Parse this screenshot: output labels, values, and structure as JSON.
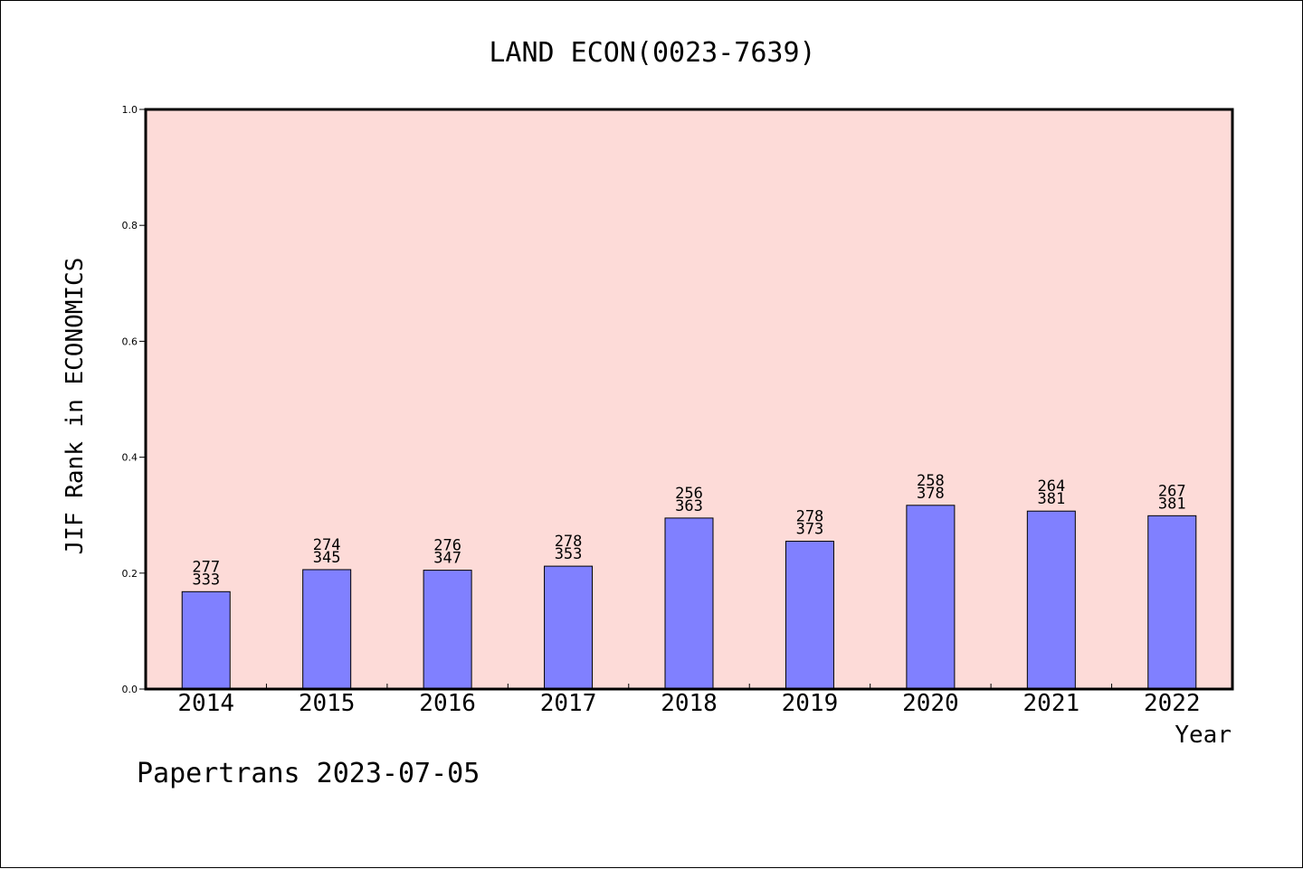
{
  "chart_data": {
    "type": "bar",
    "title": "LAND ECON(0023-7639)",
    "xlabel": "Year",
    "ylabel": "JIF Rank in ECONOMICS",
    "ylim": [
      0,
      1.0
    ],
    "yticks": [
      "0.0",
      "0.2",
      "0.4",
      "0.6",
      "0.8",
      "1.0"
    ],
    "grid": false,
    "legend": "none",
    "categories": [
      "2014",
      "2015",
      "2016",
      "2017",
      "2018",
      "2019",
      "2020",
      "2021",
      "2022"
    ],
    "values": [
      0.168,
      0.206,
      0.205,
      0.212,
      0.295,
      0.255,
      0.317,
      0.307,
      0.299
    ],
    "rank_labels": [
      "277",
      "274",
      "276",
      "278",
      "256",
      "278",
      "258",
      "264",
      "267"
    ],
    "total_labels": [
      "333",
      "345",
      "347",
      "353",
      "363",
      "373",
      "378",
      "381",
      "381"
    ],
    "footer": "Papertrans 2023-07-05",
    "colors": {
      "plot_background": "#fddbd8",
      "bar_fill": "#8080ff",
      "bar_stroke": "#000000"
    }
  }
}
